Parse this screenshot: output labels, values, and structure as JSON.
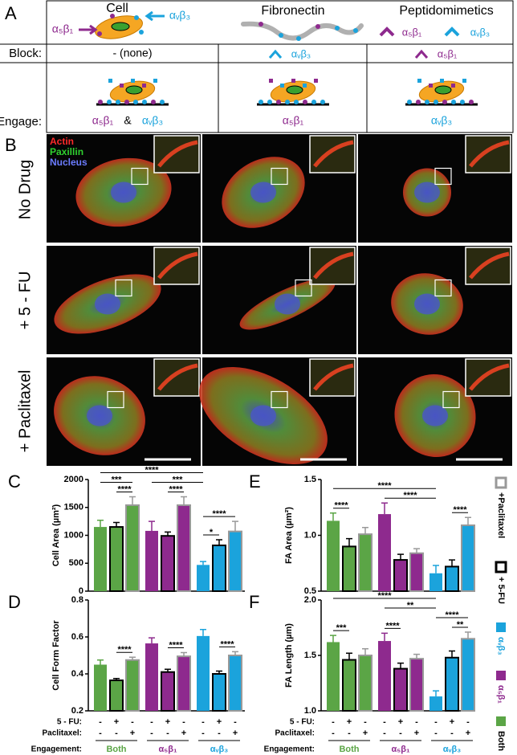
{
  "panel_a": {
    "label": "A",
    "headers": [
      "Cell",
      "Fibronectin",
      "Peptidomimetics"
    ],
    "cell_arrows": [
      "α₅β₁",
      "αᵥβ₃"
    ],
    "pepti_legend": [
      "α₅β₁",
      "αᵥβ₃"
    ],
    "block_label": "Block:",
    "block": [
      "-  (none)",
      "αᵥβ₃",
      "α₅β₁"
    ],
    "engage_label": "Engage:",
    "engage_both": [
      "α₅β₁",
      "&",
      "αᵥβ₃"
    ],
    "engage": [
      "α₅β₁",
      "αᵥβ₃"
    ]
  },
  "panel_b": {
    "label": "B",
    "stain_legend": [
      "Actin",
      "Paxillin",
      "Nucleus"
    ],
    "rows": [
      "No Drug",
      "+ 5 - FU",
      "+ Paclitaxel"
    ]
  },
  "conditions": [
    {
      "name": "+ 5-FU",
      "color": "#000000"
    },
    {
      "name": "+Paclitaxel",
      "color": "#999999"
    }
  ],
  "x_table": {
    "rows": [
      "5 - FU:",
      "Paclitaxel:",
      "Engagement:"
    ],
    "fu": [
      "-",
      "+",
      "-"
    ],
    "paclitaxel": [
      "-",
      "-",
      "+"
    ]
  },
  "chart_data": [
    {
      "type": "bar",
      "panel": "C",
      "ylabel": "Cell Area (µm²)",
      "ylim": [
        0,
        2000
      ],
      "yticks": [
        0,
        500,
        1000,
        1500,
        2000
      ],
      "series": [
        {
          "color": "#5ba546",
          "values": [
            1150,
            1150,
            1540
          ],
          "errors": [
            120,
            80,
            150
          ]
        },
        {
          "color": "#8e2a8e",
          "values": [
            1080,
            990,
            1540
          ],
          "errors": [
            170,
            70,
            150
          ]
        },
        {
          "color": "#1ba3dc",
          "values": [
            470,
            820,
            1070
          ],
          "errors": [
            60,
            100,
            180
          ]
        }
      ],
      "annotations": [
        {
          "text": "****",
          "from": 0,
          "to": 6
        },
        {
          "text": "***",
          "from": 0,
          "to": 2
        },
        {
          "text": "****",
          "from": 1,
          "to": 2
        },
        {
          "text": "***",
          "from": 3,
          "to": 6
        },
        {
          "text": "****",
          "from": 4,
          "to": 5
        },
        {
          "text": "****",
          "from": 6,
          "to": 8
        },
        {
          "text": "*",
          "from": 6,
          "to": 7
        }
      ]
    },
    {
      "type": "bar",
      "panel": "D",
      "ylabel": "Cell Form Factor",
      "ylim": [
        0.2,
        0.8
      ],
      "yticks": [
        0.2,
        0.4,
        0.6,
        0.8
      ],
      "series": [
        {
          "name": "Both",
          "color": "#5ba546",
          "values": [
            0.45,
            0.365,
            0.475
          ],
          "errors": [
            0.025,
            0.01,
            0.015
          ]
        },
        {
          "name": "α₅β₁",
          "color": "#8e2a8e",
          "values": [
            0.565,
            0.41,
            0.495
          ],
          "errors": [
            0.03,
            0.015,
            0.02
          ]
        },
        {
          "name": "αᵥβ₃",
          "color": "#1ba3dc",
          "values": [
            0.605,
            0.4,
            0.5
          ],
          "errors": [
            0.035,
            0.015,
            0.02
          ]
        }
      ],
      "annotations": [
        {
          "text": "****",
          "from": 1,
          "to": 2
        },
        {
          "text": "****",
          "from": 4,
          "to": 5
        },
        {
          "text": "****",
          "from": 7,
          "to": 8
        }
      ]
    },
    {
      "type": "bar",
      "panel": "E",
      "ylabel": "FA Area (µm²)",
      "ylim": [
        0.5,
        1.5
      ],
      "yticks": [
        0.5,
        {
          "value": 1,
          "label": "1.0"
        },
        1.5
      ],
      "series": [
        {
          "color": "#5ba546",
          "values": [
            1.13,
            0.9,
            1.01
          ],
          "errors": [
            0.07,
            0.07,
            0.06
          ]
        },
        {
          "color": "#8e2a8e",
          "values": [
            1.19,
            0.78,
            0.84
          ],
          "errors": [
            0.1,
            0.05,
            0.04
          ]
        },
        {
          "color": "#1ba3dc",
          "values": [
            0.66,
            0.72,
            1.09
          ],
          "errors": [
            0.07,
            0.06,
            0.07
          ]
        }
      ],
      "annotations": [
        {
          "text": "****",
          "from": 0,
          "to": 6
        },
        {
          "text": "****",
          "from": 0,
          "to": 1
        },
        {
          "text": "****",
          "from": 3,
          "to": 6
        },
        {
          "text": "****",
          "from": 7,
          "to": 8
        }
      ]
    },
    {
      "type": "bar",
      "panel": "F",
      "ylabel": "FA Length (µm)",
      "ylim": [
        1,
        2
      ],
      "yticks": [
        {
          "value": 1,
          "label": "1.0"
        },
        1.5,
        {
          "value": 2,
          "label": "2.0"
        }
      ],
      "series": [
        {
          "name": "Both",
          "color": "#5ba546",
          "values": [
            1.62,
            1.46,
            1.5
          ],
          "errors": [
            0.06,
            0.06,
            0.06
          ]
        },
        {
          "name": "α₅β₁",
          "color": "#8e2a8e",
          "values": [
            1.63,
            1.38,
            1.47
          ],
          "errors": [
            0.07,
            0.05,
            0.04
          ]
        },
        {
          "name": "αᵥβ₃",
          "color": "#1ba3dc",
          "values": [
            1.13,
            1.48,
            1.65
          ],
          "errors": [
            0.05,
            0.06,
            0.06
          ]
        }
      ],
      "annotations": [
        {
          "text": "****",
          "from": 0,
          "to": 6
        },
        {
          "text": "***",
          "from": 0,
          "to": 1
        },
        {
          "text": "**",
          "from": 3,
          "to": 6
        },
        {
          "text": "****",
          "from": 3,
          "to": 4
        },
        {
          "text": "****",
          "from": 6,
          "to": 8
        },
        {
          "text": "**",
          "from": 7,
          "to": 8
        }
      ]
    }
  ]
}
